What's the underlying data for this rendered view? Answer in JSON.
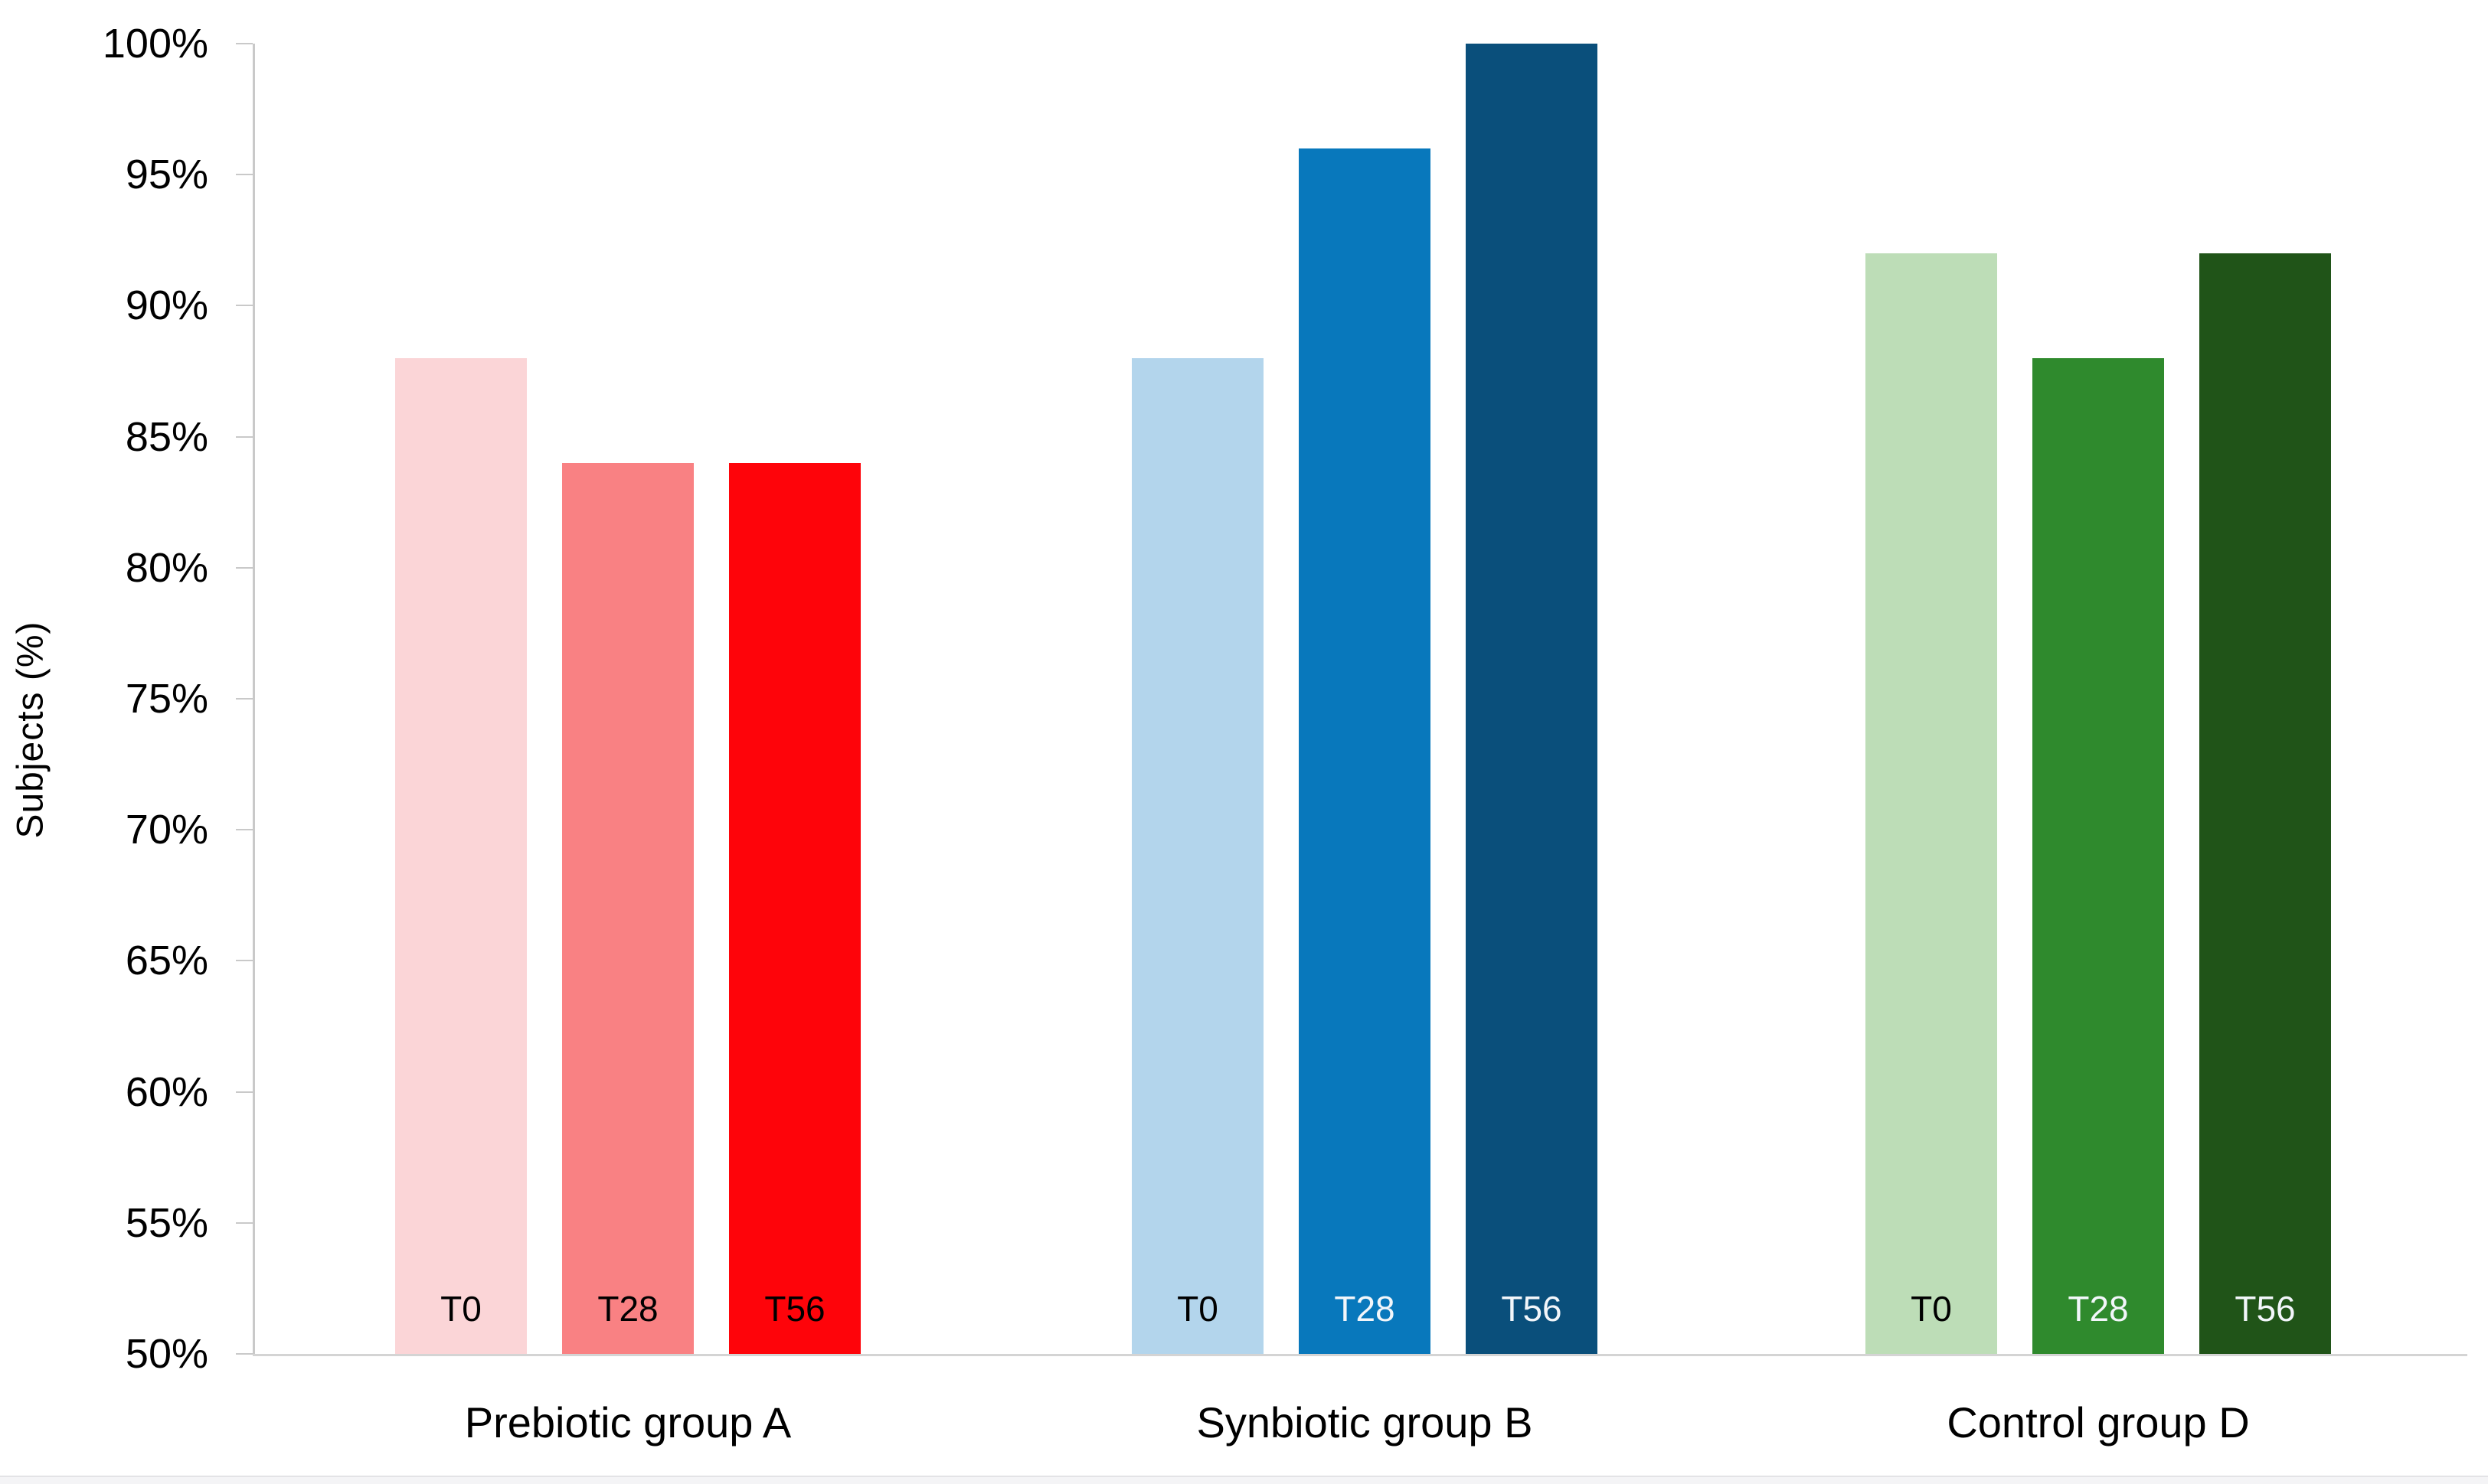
{
  "chart_data": {
    "type": "bar",
    "title": "",
    "xlabel": "",
    "ylabel": "Subjects (%)",
    "ylim": [
      50,
      100
    ],
    "ytick_step": 5,
    "ytick_suffix": "%",
    "grid": false,
    "legend": "none (bars labeled inline)",
    "categories": [
      "Prebiotic group A",
      "Synbiotic group B",
      "Control group D"
    ],
    "timepoints": [
      "T0",
      "T28",
      "T56"
    ],
    "series": [
      {
        "name": "T0",
        "values": [
          88,
          88,
          92
        ]
      },
      {
        "name": "T28",
        "values": [
          84,
          96,
          88
        ]
      },
      {
        "name": "T56",
        "values": [
          84,
          100,
          92
        ]
      }
    ],
    "bar_colors": [
      [
        "#FBD5D7",
        "#F98183",
        "#FE040A"
      ],
      [
        "#B3D5EC",
        "#0878BC",
        "#0A4F7B"
      ],
      [
        "#BDDDB7",
        "#2F8A2D",
        "#205418"
      ]
    ],
    "bar_label_colors": [
      [
        "#000000",
        "#000000",
        "#000000"
      ],
      [
        "#000000",
        "#F2F6FA",
        "#F2F6FA"
      ],
      [
        "#000000",
        "#F2F6FA",
        "#F2F6FA"
      ]
    ],
    "axis_color": "#c9c9c9",
    "text_color": "#000000"
  }
}
